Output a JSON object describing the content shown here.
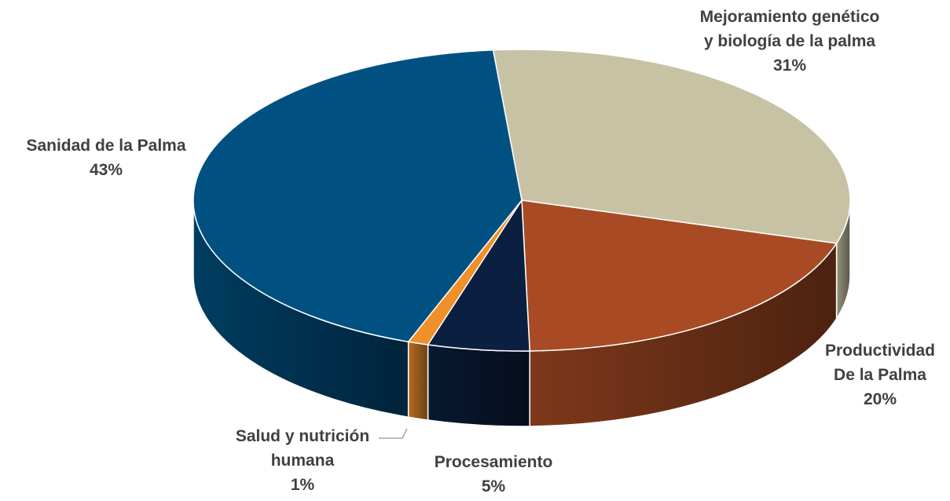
{
  "chart_data": {
    "type": "pie3d",
    "categories": [
      "Mejoramiento genético y biología de la palma",
      "Productividad De la Palma",
      "Procesamiento",
      "Salud y nutrición humana",
      "Sanidad de la Palma"
    ],
    "values": [
      31,
      20,
      5,
      1,
      43
    ],
    "value_labels": [
      "31%",
      "20%",
      "5%",
      "1%",
      "43%"
    ],
    "colors": [
      "#c8c2a5",
      "#a84b24",
      "#0b2040",
      "#f0902a",
      "#005182"
    ]
  }
}
